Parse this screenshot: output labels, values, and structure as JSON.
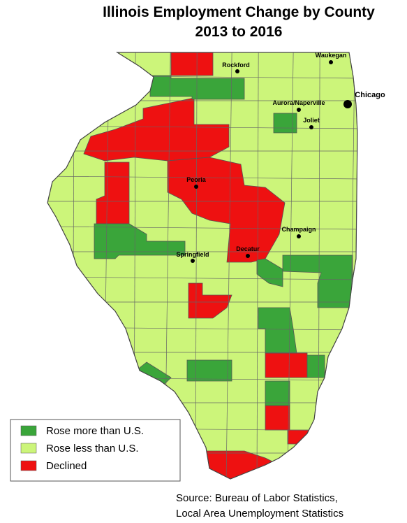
{
  "title": "Illinois Employment Change by County",
  "subtitle": "2013 to 2016",
  "legend": [
    {
      "label": "Rose more than U.S.",
      "color": "#3aa53a"
    },
    {
      "label": "Rose less than U.S.",
      "color": "#ccf57a"
    },
    {
      "label": "Declined",
      "color": "#ee1111"
    }
  ],
  "cities": [
    "Rockford",
    "Waukegan",
    "Chicago",
    "Aurora/Naperville",
    "Joliet",
    "Peoria",
    "Champaign",
    "Springfield",
    "Decatur"
  ],
  "source": [
    "Source: Bureau of Labor Statistics,",
    "Local Area Unemployment Statistics"
  ]
}
